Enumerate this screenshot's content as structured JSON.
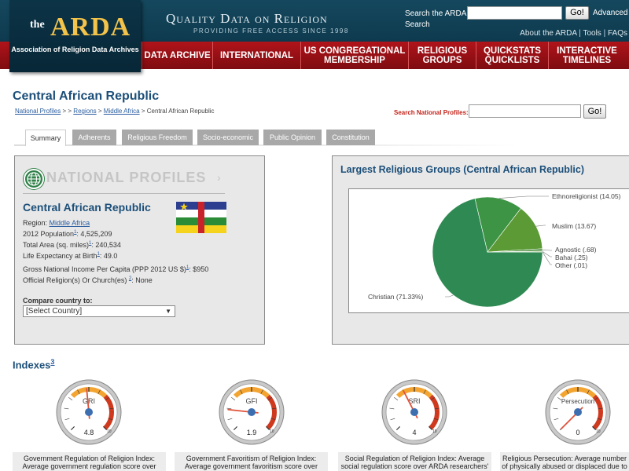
{
  "header": {
    "logo_the": "the",
    "logo_arda": "ARDA",
    "logo_sub": "Association of Religion Data Archives",
    "tagline": "Quality Data on Religion",
    "tagline_sub": "PROVIDING FREE ACCESS SINCE 1998",
    "search_label": "Search the ARDA Search",
    "search_placeholder": "",
    "go_label": "Go!",
    "advanced_label": "Advanced",
    "links": [
      "About the ARDA",
      "Tools",
      "FAQs"
    ],
    "separator": "|"
  },
  "nav": [
    {
      "label": "Data Archive"
    },
    {
      "label": "International"
    },
    {
      "label": "US Congregational Membership"
    },
    {
      "label": "Religious Groups"
    },
    {
      "label": "QuickStats QuickLists"
    },
    {
      "label": "Interactive Timelines"
    }
  ],
  "page": {
    "title": "Central African Republic",
    "breadcrumb": [
      "National Profiles",
      ">",
      ">",
      "Regions",
      ">",
      "Middle Africa",
      ">",
      "Central African Republic"
    ],
    "np_search_label": "Search National Profiles:",
    "np_go_label": "Go!"
  },
  "tabs": [
    "Summary",
    "Adherents",
    "Religious Freedom",
    "Socio-economic",
    "Public Opinion",
    "Constitution"
  ],
  "profile": {
    "section_heading": "NATIONAL PROFILES",
    "arrow": "›",
    "country": "Central African Republic",
    "region_label": "Region:",
    "region_value": "Middle Africa",
    "population_label": "2012 Population",
    "population_sup": "1",
    "population_value": ": 4,525,209",
    "area_label": "Total Area (sq. miles)",
    "area_sup": "1",
    "area_value": ": 240,534",
    "life_label": "Life Expectancy at Birth",
    "life_sup": "1",
    "life_value": ": 49.0",
    "gni_label": "Gross National Income Per Capita (PPP 2012 US $)",
    "gni_sup": "1",
    "gni_value": ": $950",
    "religion_label": "Official Religion(s) Or Church(es)",
    "religion_sup": "2",
    "religion_value": ": None",
    "compare_label": "Compare country to:",
    "compare_selected": "[Select Country]",
    "flag_colors": {
      "blue": "#2b3e8f",
      "white": "#ffffff",
      "green": "#2a8c36",
      "yellow": "#f5d21c",
      "red": "#c8222a",
      "star": "#f5d21c"
    }
  },
  "chart_data": {
    "type": "pie",
    "title": "Largest Religious Groups (Central African Republic)",
    "categories": [
      "Christian",
      "Ethnoreligionist",
      "Muslim",
      "Agnostic",
      "Bahai",
      "Other"
    ],
    "values": [
      71.33,
      14.05,
      13.67,
      0.68,
      0.25,
      0.01
    ],
    "labels": [
      "Christian (71.33%)",
      "Ethnoreligionist (14.05)",
      "Muslim (13.67)",
      "Agnostic (.68)",
      "Bahai (.25)",
      "Other (.01)"
    ],
    "colors": [
      "#2e8a52",
      "#3d9444",
      "#5b9a34",
      "#4a8e3c",
      "#6aa040",
      "#7aaa50"
    ]
  },
  "indexes": {
    "title": "Indexes",
    "title_sup": "3",
    "gauges": [
      {
        "label": "GRI",
        "value": 4.8,
        "display": "4.8",
        "description": "Government Regulation of Religion Index: Average government regulation score over ARDA"
      },
      {
        "label": "GFI",
        "value": 1.9,
        "display": "1.9",
        "description": "Government Favoritism of Religion Index: Average government favoritism score over ARDA"
      },
      {
        "label": "SRI",
        "value": 4,
        "display": "4",
        "description": "Social Regulation of Religion Index: Average social regulation score over ARDA researchers'"
      },
      {
        "label": "Persecution",
        "value": 0,
        "display": "0",
        "description": "Religious Persecution: Average number of physically abused or displaced due to t"
      }
    ],
    "scale_max": "10"
  }
}
